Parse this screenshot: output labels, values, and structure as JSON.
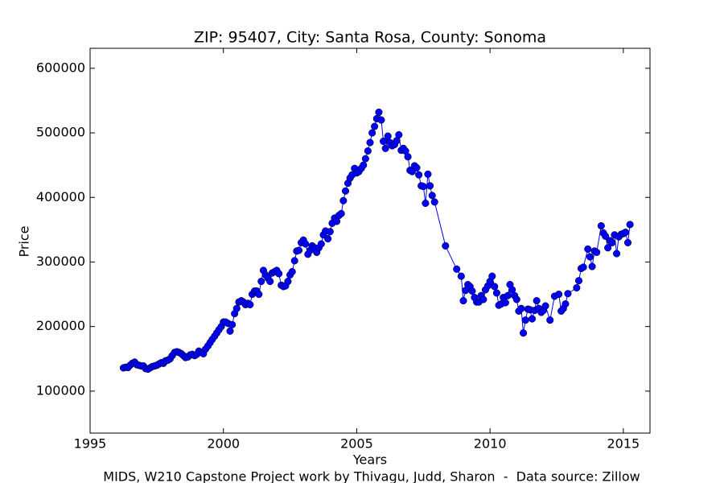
{
  "chart_data": {
    "type": "line",
    "title": "ZIP: 95407, City: Santa Rosa, County: Sonoma",
    "x_label": "Years",
    "y_label": "Price",
    "caption": "MIDS, W210 Capstone Project work by Thivagu, Judd, Sharon  -  Data source: Zillow",
    "xlim": [
      1995,
      2016
    ],
    "xticks": [
      1995,
      2000,
      2005,
      2010,
      2015
    ],
    "ylim": [
      35000,
      631000
    ],
    "yticks": [
      100000,
      200000,
      300000,
      400000,
      500000,
      600000
    ],
    "grid": false,
    "marker": true,
    "series": [
      {
        "color": "#0000ff",
        "x": [
          1996.25,
          1996.33,
          1996.42,
          1996.5,
          1996.58,
          1996.67,
          1996.75,
          1996.83,
          1996.92,
          1997.0,
          1997.08,
          1997.17,
          1997.25,
          1997.33,
          1997.42,
          1997.5,
          1997.58,
          1997.67,
          1997.75,
          1997.83,
          1997.92,
          1998.0,
          1998.08,
          1998.17,
          1998.25,
          1998.33,
          1998.42,
          1998.5,
          1998.58,
          1998.67,
          1998.75,
          1998.83,
          1998.92,
          1999.0,
          1999.08,
          1999.17,
          1999.25,
          1999.33,
          1999.42,
          1999.5,
          1999.58,
          1999.67,
          1999.75,
          1999.83,
          1999.92,
          2000.0,
          2000.08,
          2000.17,
          2000.25,
          2000.33,
          2000.42,
          2000.5,
          2000.58,
          2000.67,
          2000.75,
          2000.83,
          2000.92,
          2001.0,
          2001.08,
          2001.17,
          2001.25,
          2001.33,
          2001.42,
          2001.5,
          2001.58,
          2001.67,
          2001.75,
          2001.83,
          2001.92,
          2002.0,
          2002.08,
          2002.17,
          2002.25,
          2002.33,
          2002.42,
          2002.5,
          2002.58,
          2002.67,
          2002.75,
          2002.83,
          2002.92,
          2003.0,
          2003.08,
          2003.17,
          2003.25,
          2003.33,
          2003.42,
          2003.5,
          2003.58,
          2003.67,
          2003.75,
          2003.83,
          2003.92,
          2004.0,
          2004.08,
          2004.17,
          2004.25,
          2004.33,
          2004.42,
          2004.5,
          2004.58,
          2004.67,
          2004.75,
          2004.83,
          2004.92,
          2005.0,
          2005.08,
          2005.17,
          2005.25,
          2005.33,
          2005.42,
          2005.5,
          2005.58,
          2005.67,
          2005.75,
          2005.83,
          2005.92,
          2006.0,
          2006.08,
          2006.17,
          2006.25,
          2006.33,
          2006.42,
          2006.5,
          2006.58,
          2006.67,
          2006.75,
          2006.83,
          2006.92,
          2007.0,
          2007.08,
          2007.17,
          2007.25,
          2007.33,
          2007.42,
          2007.5,
          2007.58,
          2007.67,
          2007.75,
          2007.83,
          2007.92,
          2008.33,
          2008.75,
          2008.92,
          2009.0,
          2009.08,
          2009.17,
          2009.25,
          2009.33,
          2009.42,
          2009.5,
          2009.58,
          2009.67,
          2009.75,
          2009.83,
          2009.92,
          2010.0,
          2010.08,
          2010.17,
          2010.25,
          2010.33,
          2010.42,
          2010.5,
          2010.58,
          2010.67,
          2010.75,
          2010.83,
          2010.92,
          2011.0,
          2011.08,
          2011.17,
          2011.25,
          2011.33,
          2011.42,
          2011.5,
          2011.58,
          2011.67,
          2011.75,
          2011.83,
          2011.92,
          2012.0,
          2012.08,
          2012.25,
          2012.42,
          2012.58,
          2012.67,
          2012.75,
          2012.83,
          2012.92,
          2013.25,
          2013.33,
          2013.42,
          2013.5,
          2013.67,
          2013.75,
          2013.83,
          2013.92,
          2014.0,
          2014.17,
          2014.25,
          2014.33,
          2014.42,
          2014.5,
          2014.58,
          2014.67,
          2014.75,
          2014.83,
          2014.92,
          2015.0,
          2015.08,
          2015.17,
          2015.25
        ],
        "values": [
          136000,
          137000,
          136500,
          140000,
          143000,
          145000,
          141000,
          140000,
          139000,
          139000,
          135000,
          134000,
          136000,
          138000,
          139000,
          140000,
          142000,
          144000,
          143000,
          147000,
          148000,
          150000,
          155000,
          160000,
          161000,
          160000,
          158000,
          155000,
          152000,
          153000,
          156000,
          157000,
          155000,
          157000,
          162000,
          160000,
          158000,
          165000,
          170000,
          175000,
          180000,
          185000,
          190000,
          195000,
          200000,
          207000,
          207000,
          205000,
          193000,
          203000,
          220000,
          228000,
          238000,
          240000,
          238000,
          234000,
          236000,
          234000,
          250000,
          255000,
          255000,
          250000,
          270000,
          287000,
          280000,
          275000,
          270000,
          283000,
          285000,
          287000,
          282000,
          264000,
          262000,
          263000,
          270000,
          280000,
          285000,
          302000,
          317000,
          318000,
          330000,
          334000,
          328000,
          312000,
          318000,
          325000,
          322000,
          315000,
          322000,
          328000,
          342000,
          348000,
          336000,
          347000,
          360000,
          368000,
          363000,
          372000,
          375000,
          395000,
          410000,
          422000,
          430000,
          435000,
          445000,
          438000,
          440000,
          445000,
          450000,
          460000,
          472000,
          485000,
          500000,
          510000,
          522000,
          532000,
          520000,
          487000,
          476000,
          495000,
          485000,
          480000,
          482000,
          488000,
          497000,
          473000,
          476000,
          472000,
          463000,
          442000,
          440000,
          449000,
          446000,
          435000,
          418000,
          417000,
          391000,
          436000,
          418000,
          403000,
          393000,
          325000,
          289000,
          278000,
          240000,
          256000,
          265000,
          262000,
          255000,
          245000,
          238000,
          238000,
          248000,
          242000,
          257000,
          263000,
          270000,
          278000,
          262000,
          252000,
          233000,
          235000,
          245000,
          237000,
          248000,
          265000,
          257000,
          248000,
          242000,
          224000,
          228000,
          190000,
          210000,
          227000,
          226000,
          212000,
          225000,
          240000,
          228000,
          222000,
          225000,
          232000,
          210000,
          247000,
          250000,
          224000,
          228000,
          235000,
          251000,
          260000,
          271000,
          290000,
          292000,
          320000,
          308000,
          293000,
          317000,
          315000,
          356000,
          345000,
          340000,
          322000,
          333000,
          330000,
          342000,
          313000,
          339000,
          343000,
          344000,
          346000,
          330000,
          358000
        ]
      }
    ]
  }
}
